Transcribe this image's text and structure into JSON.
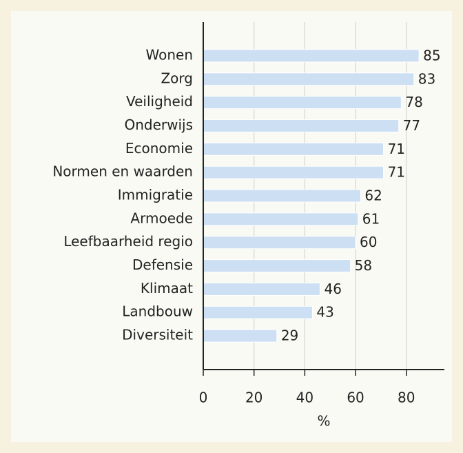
{
  "chart_data": {
    "type": "bar",
    "orientation": "horizontal",
    "categories": [
      "Wonen",
      "Zorg",
      "Veiligheid",
      "Onderwijs",
      "Economie",
      "Normen en waarden",
      "Immigratie",
      "Armoede",
      "Leefbaarheid regio",
      "Defensie",
      "Klimaat",
      "Landbouw",
      "Diversiteit"
    ],
    "values": [
      85,
      83,
      78,
      77,
      71,
      71,
      62,
      61,
      60,
      58,
      46,
      43,
      29
    ],
    "color": "#cddff3",
    "xlabel": "%",
    "xlim": [
      0,
      95
    ],
    "xticks": [
      0,
      20,
      40,
      60,
      80
    ],
    "grid": true
  }
}
